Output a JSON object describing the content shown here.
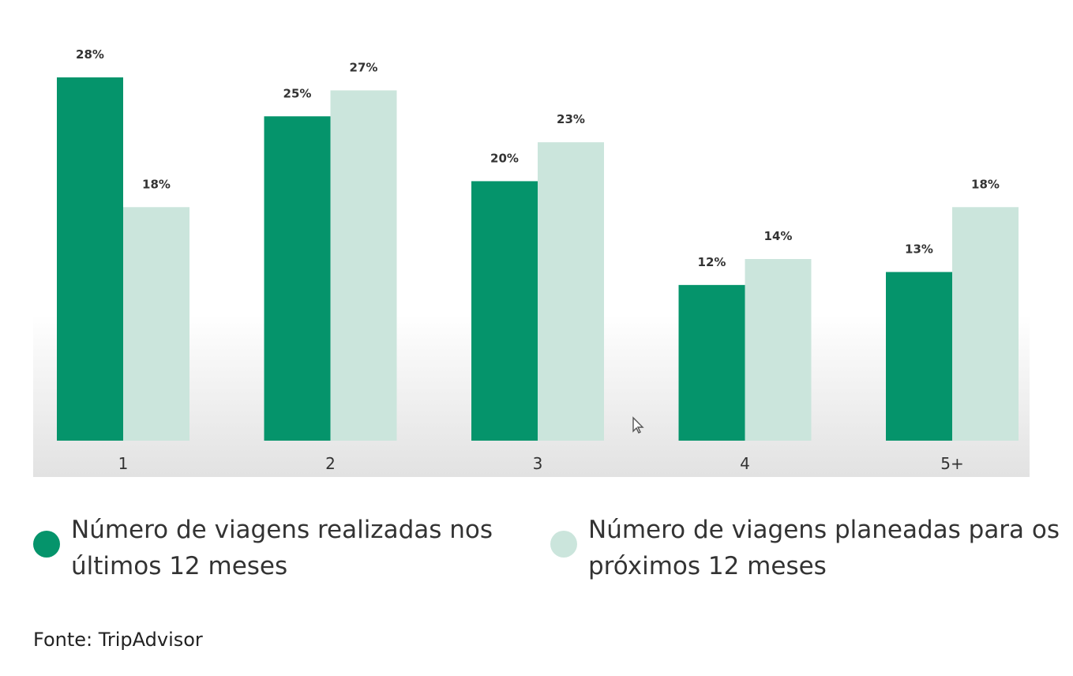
{
  "chart_data": {
    "type": "bar",
    "categories": [
      "1",
      "2",
      "3",
      "4",
      "5+"
    ],
    "series": [
      {
        "name": "Número de viagens realizadas nos últimos 12 meses",
        "values": [
          28,
          25,
          20,
          12,
          13
        ],
        "color": "#05946b"
      },
      {
        "name": "Número de viagens planeadas para os próximos 12 meses",
        "values": [
          18,
          27,
          23,
          14,
          18
        ],
        "color": "#cbe5dc"
      }
    ],
    "value_suffix": "%",
    "ylim": [
      0,
      30
    ],
    "grid": false,
    "legend_position": "bottom"
  },
  "legend": {
    "item1": "Número de viagens realizadas nos últimos 12 meses",
    "item2": "Número de viagens planeadas para os próximos 12 meses"
  },
  "source": "Fonte: TripAdvisor",
  "icons": {
    "cursor": "mouse-pointer-icon"
  }
}
